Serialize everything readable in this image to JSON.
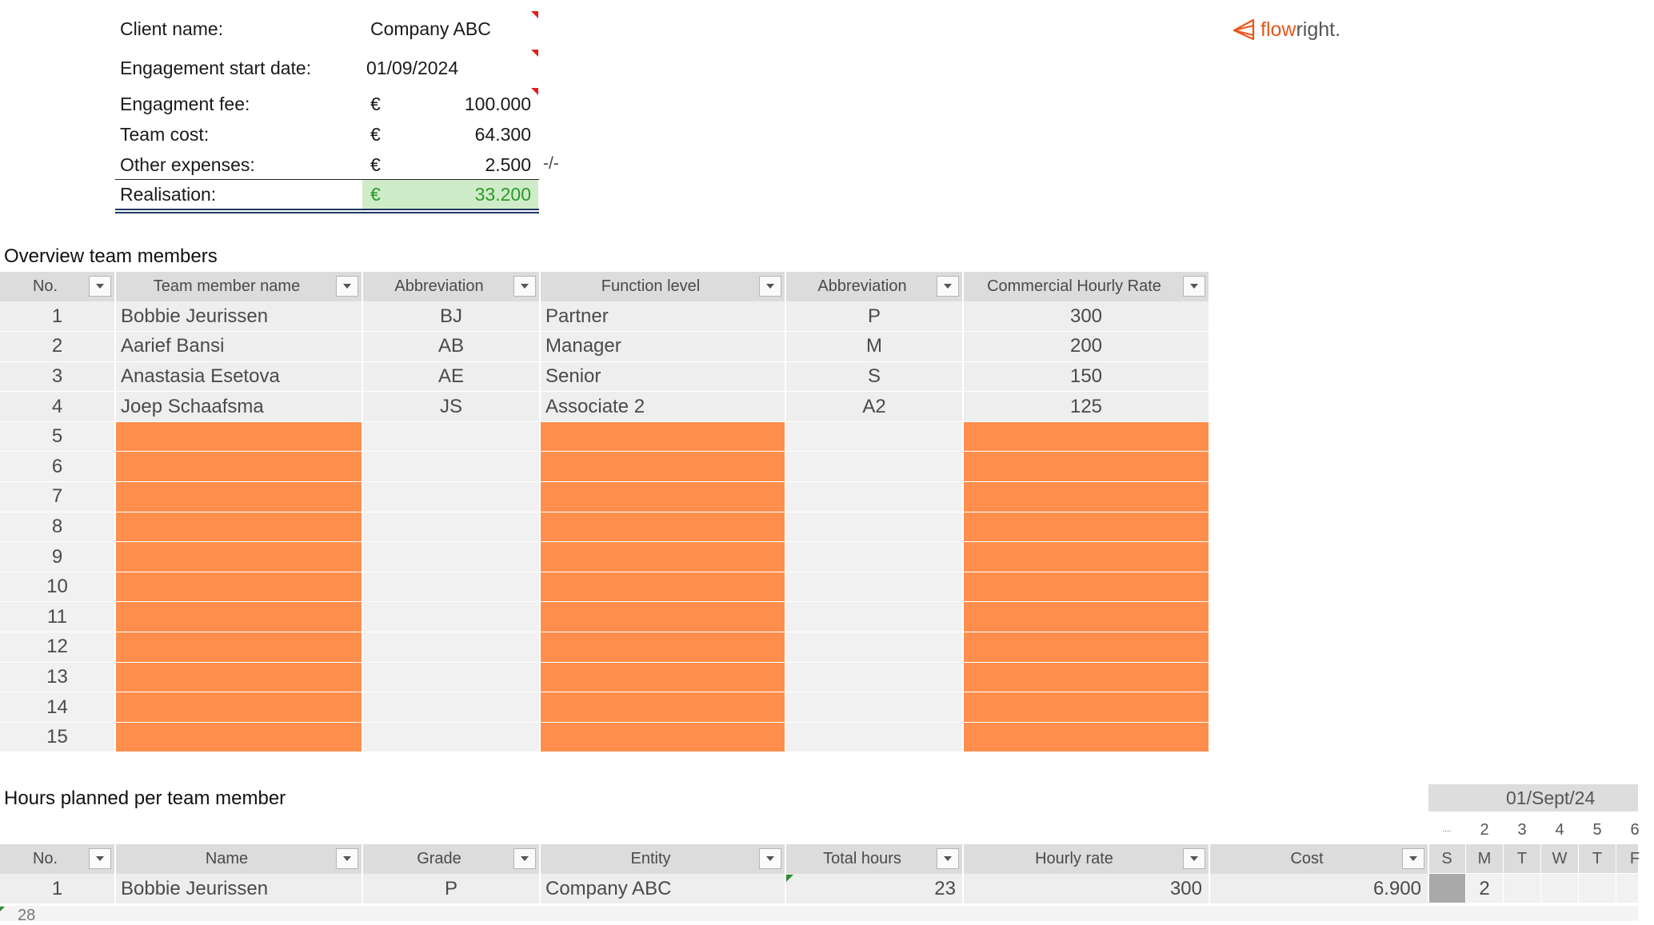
{
  "summary": {
    "client_label": "Client name:",
    "client_value": "Company ABC",
    "start_label": "Engagement start date:",
    "start_value": "01/09/2024",
    "fee_label": "Engagment fee:",
    "fee_currency": "€",
    "fee_value": "100.000",
    "team_label": "Team cost:",
    "team_currency": "€",
    "team_value": "64.300",
    "other_label": "Other expenses:",
    "other_currency": "€",
    "other_value": "2.500",
    "other_note": "-/-",
    "real_label": "Realisation:",
    "real_currency": "€",
    "real_value": "33.200"
  },
  "logo": {
    "part1": "flow",
    "part2": "right.",
    "icon": "paper-plane-icon",
    "accent": "#e8571a"
  },
  "team_overview": {
    "title": "Overview team members",
    "columns": [
      "No.",
      "Team member name",
      "Abbreviation",
      "Function level",
      "Abbreviation",
      "Commercial Hourly Rate"
    ],
    "rows": [
      [
        "1",
        "Bobbie Jeurissen",
        "BJ",
        "Partner",
        "P",
        "300"
      ],
      [
        "2",
        "Aarief Bansi",
        "AB",
        "Manager",
        "M",
        "200"
      ],
      [
        "3",
        "Anastasia Esetova",
        "AE",
        "Senior",
        "S",
        "150"
      ],
      [
        "4",
        "Joep Schaafsma",
        "JS",
        "Associate 2",
        "A2",
        "125"
      ],
      [
        "5",
        "",
        "",
        "",
        "",
        ""
      ],
      [
        "6",
        "",
        "",
        "",
        "",
        ""
      ],
      [
        "7",
        "",
        "",
        "",
        "",
        ""
      ],
      [
        "8",
        "",
        "",
        "",
        "",
        ""
      ],
      [
        "9",
        "",
        "",
        "",
        "",
        ""
      ],
      [
        "10",
        "",
        "",
        "",
        "",
        ""
      ],
      [
        "11",
        "",
        "",
        "",
        "",
        ""
      ],
      [
        "12",
        "",
        "",
        "",
        "",
        ""
      ],
      [
        "13",
        "",
        "",
        "",
        "",
        ""
      ],
      [
        "14",
        "",
        "",
        "",
        "",
        ""
      ],
      [
        "15",
        "",
        "",
        "",
        "",
        ""
      ]
    ],
    "empty_fill_color": "#ff8e4c"
  },
  "hours": {
    "title": "Hours planned per team member",
    "columns": [
      "No.",
      "Name",
      "Grade",
      "Entity",
      "Total hours",
      "Hourly rate",
      "Cost"
    ],
    "rows": [
      [
        "1",
        "Bobbie Jeurissen",
        "P",
        "Company ABC",
        "23",
        "300",
        "6.900"
      ]
    ],
    "partial_row_no": "28"
  },
  "calendar": {
    "date": "01/Sept/24",
    "numbers": [
      "....",
      "2",
      "3",
      "4",
      "5",
      "6"
    ],
    "days": [
      "S",
      "M",
      "T",
      "W",
      "T",
      "F"
    ],
    "values": [
      "",
      "2",
      "",
      "",
      "",
      ""
    ]
  }
}
